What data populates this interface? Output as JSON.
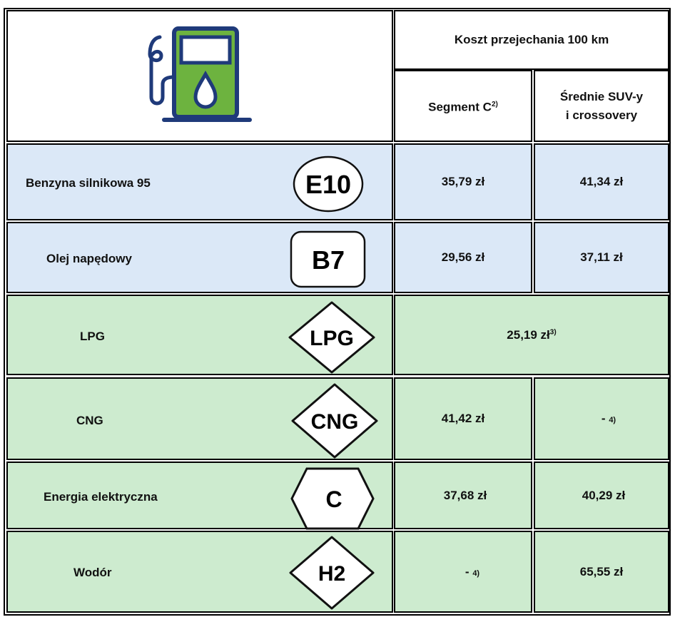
{
  "header": {
    "title": "Koszt przejechania 100 km",
    "col1": "Segment C",
    "col1_note": "2)",
    "col2_line1": "Średnie SUV-y",
    "col2_line2": "i crossovery",
    "icon": "fuel-pump-icon"
  },
  "colors": {
    "fossil_row_bg": "#dbe8f7",
    "alt_row_bg": "#cdebcf",
    "pump_green": "#6db33f",
    "pump_navy": "#1f3a7a"
  },
  "rows": [
    {
      "name": "Benzyna silnikowa 95",
      "badge": "E10",
      "badge_shape": "ellipse",
      "segment_c": "35,79 zł",
      "suv": "41,34 zł"
    },
    {
      "name": "Olej napędowy",
      "badge": "B7",
      "badge_shape": "rounded-square",
      "segment_c": "29,56 zł",
      "suv": "37,11 zł"
    },
    {
      "name": "LPG",
      "badge": "LPG",
      "badge_shape": "diamond",
      "combined": "25,19 zł",
      "combined_note": "3)"
    },
    {
      "name": "CNG",
      "badge": "CNG",
      "badge_shape": "diamond",
      "segment_c": "41,42 zł",
      "suv": "-",
      "suv_note": "4)"
    },
    {
      "name": "Energia elektryczna",
      "badge": "C",
      "badge_shape": "hexagon",
      "segment_c": "37,68 zł",
      "suv": "40,29 zł"
    },
    {
      "name": "Wodór",
      "badge": "H2",
      "badge_shape": "diamond",
      "segment_c": "-",
      "segment_c_note": "4)",
      "suv": "65,55 zł"
    }
  ]
}
